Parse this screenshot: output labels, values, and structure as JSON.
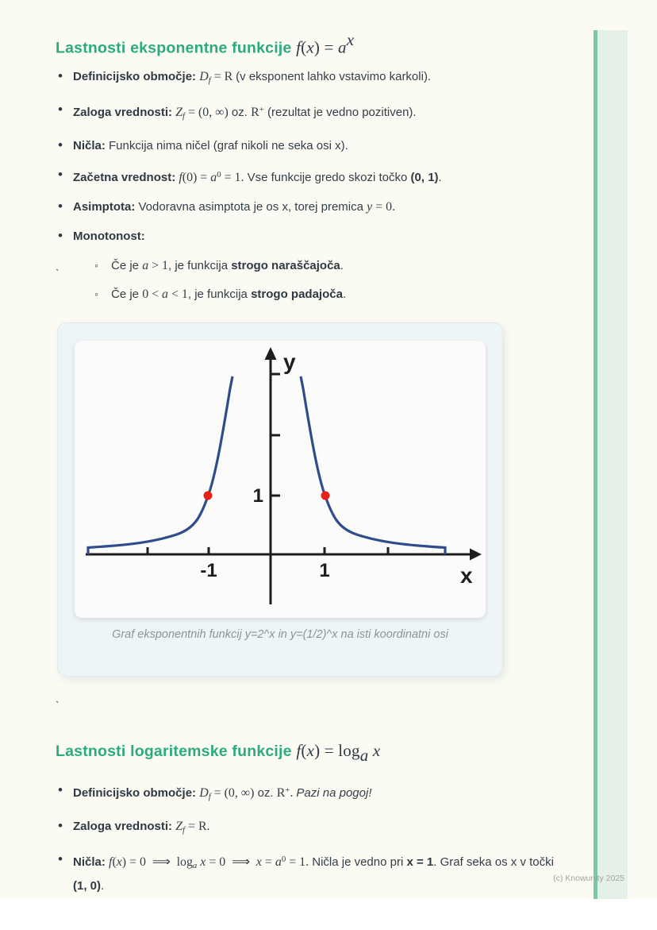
{
  "page": {
    "watermark": "(c) Knowunity 2025",
    "stray_marks": [
      "`",
      "`"
    ],
    "colors": {
      "heading_green": "#2bab7e",
      "body_text": "#333e49",
      "sidebar_dark": "#86c3a4",
      "sidebar_light": "#e4f0e8",
      "paper_bg": "#fbfbf3"
    }
  },
  "exp_section": {
    "heading_runs": [
      {
        "cls": "g",
        "text": "Lastnosti eksponentne funkcije "
      },
      {
        "cls": "m",
        "text": "f"
      },
      {
        "cls": "mr",
        "text": "("
      },
      {
        "cls": "m",
        "text": "x"
      },
      {
        "cls": "mr",
        "text": ") = "
      },
      {
        "cls": "m",
        "text": "a"
      },
      {
        "cls": "msup",
        "text": "x"
      }
    ],
    "items": [
      {
        "runs": [
          {
            "cls": "b",
            "text": "Definicijsko območje: "
          },
          {
            "cls": "m",
            "text": "D"
          },
          {
            "cls": "msub",
            "text": "f"
          },
          {
            "cls": "mr",
            "text": " = R "
          },
          {
            "cls": "t",
            "text": "(v eksponent lahko vstavimo karkoli)."
          }
        ]
      },
      {
        "runs": [
          {
            "cls": "b",
            "text": "Zaloga vrednosti: "
          },
          {
            "cls": "m",
            "text": "Z"
          },
          {
            "cls": "msub",
            "text": "f"
          },
          {
            "cls": "mr",
            "text": " = (0, ∞)"
          },
          {
            "cls": "t",
            "text": " oz. "
          },
          {
            "cls": "mr",
            "text": "R"
          },
          {
            "cls": "rsup",
            "text": "+"
          },
          {
            "cls": "t",
            "text": " (rezultat je vedno pozitiven)."
          }
        ]
      },
      {
        "runs": [
          {
            "cls": "b",
            "text": "Ničla: "
          },
          {
            "cls": "t",
            "text": "Funkcija nima ničel (graf nikoli ne seka osi x)."
          }
        ]
      },
      {
        "runs": [
          {
            "cls": "b",
            "text": "Začetna vrednost: "
          },
          {
            "cls": "m",
            "text": "f"
          },
          {
            "cls": "mr",
            "text": "(0) = "
          },
          {
            "cls": "m",
            "text": "a"
          },
          {
            "cls": "rsup",
            "text": "0"
          },
          {
            "cls": "mr",
            "text": " = 1."
          },
          {
            "cls": "t",
            "text": " Vse funkcije gredo skozi točko "
          },
          {
            "cls": "b",
            "text": "(0, 1)"
          },
          {
            "cls": "t",
            "text": "."
          }
        ]
      },
      {
        "runs": [
          {
            "cls": "b",
            "text": "Asimptota: "
          },
          {
            "cls": "t",
            "text": "Vodoravna asimptota je os x, torej premica "
          },
          {
            "cls": "m",
            "text": "y"
          },
          {
            "cls": "mr",
            "text": " = 0."
          }
        ]
      },
      {
        "runs": [
          {
            "cls": "b",
            "text": "Monotonost:"
          }
        ],
        "subitems": [
          {
            "runs": [
              {
                "cls": "t",
                "text": "Če je "
              },
              {
                "cls": "m",
                "text": "a"
              },
              {
                "cls": "mr",
                "text": " > 1"
              },
              {
                "cls": "t",
                "text": ", je funkcija "
              },
              {
                "cls": "b",
                "text": "strogo naraščajoča"
              },
              {
                "cls": "t",
                "text": "."
              }
            ]
          },
          {
            "runs": [
              {
                "cls": "t",
                "text": "Če je "
              },
              {
                "cls": "mr",
                "text": "0 < "
              },
              {
                "cls": "m",
                "text": "a"
              },
              {
                "cls": "mr",
                "text": " < 1"
              },
              {
                "cls": "t",
                "text": ", je funkcija "
              },
              {
                "cls": "b",
                "text": "strogo padajoča"
              },
              {
                "cls": "t",
                "text": "."
              }
            ]
          }
        ]
      }
    ]
  },
  "figure": {
    "caption": "Graf eksponentnih funkcij y=2^x in y=(1/2)^x na isti koordinatni osi",
    "labels": {
      "x_axis": "x",
      "y_axis": "y",
      "x_tick_neg": "-1",
      "x_tick_pos": "1",
      "y_tick_one": "1"
    },
    "curves": [
      "y=2^x",
      "y=(1/2)^x"
    ],
    "marked_points": [
      [
        -1,
        1
      ],
      [
        1,
        1
      ]
    ],
    "colors": {
      "curve": "#2f4d8c",
      "point": "#e82015",
      "axis": "#1d1d1d"
    }
  },
  "log_section": {
    "heading_runs": [
      {
        "cls": "g",
        "text": "Lastnosti logaritemske funkcije "
      },
      {
        "cls": "m",
        "text": "f"
      },
      {
        "cls": "mr",
        "text": "("
      },
      {
        "cls": "m",
        "text": "x"
      },
      {
        "cls": "mr",
        "text": ") = log"
      },
      {
        "cls": "msub",
        "text": "a"
      },
      {
        "cls": "m",
        "text": " x"
      }
    ],
    "items": [
      {
        "runs": [
          {
            "cls": "b",
            "text": "Definicijsko območje: "
          },
          {
            "cls": "m",
            "text": "D"
          },
          {
            "cls": "msub",
            "text": "f"
          },
          {
            "cls": "mr",
            "text": " = (0, ∞)"
          },
          {
            "cls": "t",
            "text": " oz. "
          },
          {
            "cls": "mr",
            "text": "R"
          },
          {
            "cls": "rsup",
            "text": "+"
          },
          {
            "cls": "mr",
            "text": ". "
          },
          {
            "cls": "i",
            "text": "Pazi na pogoj!"
          }
        ]
      },
      {
        "runs": [
          {
            "cls": "b",
            "text": "Zaloga vrednosti: "
          },
          {
            "cls": "m",
            "text": "Z"
          },
          {
            "cls": "msub",
            "text": "f"
          },
          {
            "cls": "mr",
            "text": " = R."
          }
        ]
      },
      {
        "runs": [
          {
            "cls": "b",
            "text": "Ničla: "
          },
          {
            "cls": "m",
            "text": "f"
          },
          {
            "cls": "mr",
            "text": "("
          },
          {
            "cls": "m",
            "text": "x"
          },
          {
            "cls": "mr",
            "text": ") = 0 ⟹ log"
          },
          {
            "cls": "msub",
            "text": "a"
          },
          {
            "cls": "m",
            "text": " x"
          },
          {
            "cls": "mr",
            "text": " = 0 ⟹ "
          },
          {
            "cls": "m",
            "text": "x"
          },
          {
            "cls": "mr",
            "text": " = "
          },
          {
            "cls": "m",
            "text": "a"
          },
          {
            "cls": "rsup",
            "text": "0"
          },
          {
            "cls": "mr",
            "text": " = 1."
          },
          {
            "cls": "t",
            "text": " Ničla je vedno pri "
          },
          {
            "cls": "b",
            "text": "x = 1"
          },
          {
            "cls": "t",
            "text": ". Graf seka os x v točki "
          },
          {
            "cls": "b",
            "text": "(1, 0)"
          },
          {
            "cls": "t",
            "text": "."
          }
        ]
      }
    ]
  }
}
